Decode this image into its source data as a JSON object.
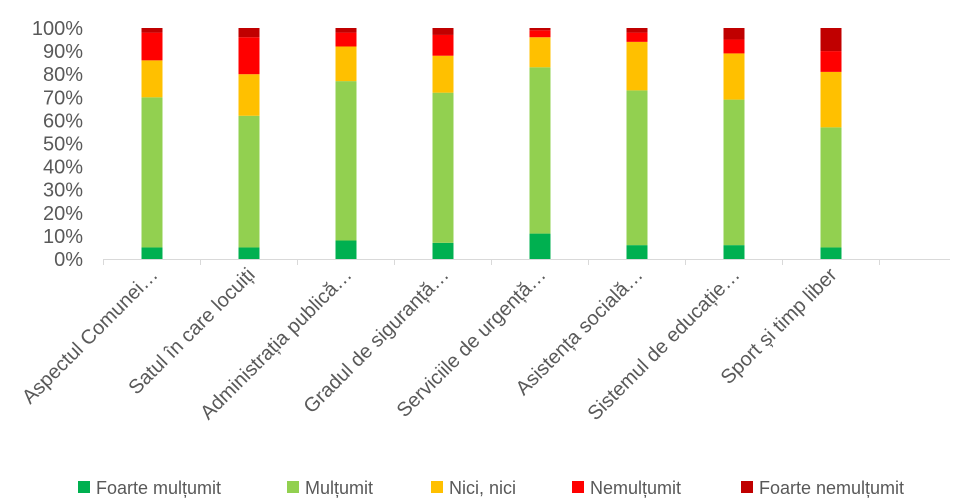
{
  "chart_data": {
    "type": "bar",
    "stacking": "percent",
    "title": "",
    "xlabel": "",
    "ylabel": "",
    "categories": [
      "Aspectul Comunei…",
      "Satul în care locuiți",
      "Administrația publică…",
      "Gradul de siguranță…",
      "Serviciile de urgență…",
      "Asistența socială…",
      "Sistemul de educație…",
      "Sport și timp liber"
    ],
    "series": [
      {
        "name": "Foarte mulțumit",
        "color": "#00b050",
        "values": [
          5,
          5,
          8,
          7,
          11,
          6,
          6,
          5
        ]
      },
      {
        "name": "Mulțumit",
        "color": "#92d050",
        "values": [
          65,
          57,
          69,
          65,
          72,
          67,
          63,
          52
        ]
      },
      {
        "name": "Nici, nici",
        "color": "#ffc000",
        "values": [
          16,
          18,
          15,
          16,
          13,
          21,
          20,
          24
        ]
      },
      {
        "name": "Nemulțumit",
        "color": "#ff0000",
        "values": [
          12,
          16,
          6,
          9,
          3,
          4,
          6,
          9
        ]
      },
      {
        "name": "Foarte nemulțumit",
        "color": "#c00000",
        "values": [
          2,
          4,
          2,
          3,
          1,
          2,
          5,
          10
        ]
      }
    ],
    "ylim": [
      0,
      100
    ],
    "yticks": [
      0,
      10,
      20,
      30,
      40,
      50,
      60,
      70,
      80,
      90,
      100
    ],
    "ytick_labels": [
      "0%",
      "10%",
      "20%",
      "30%",
      "40%",
      "50%",
      "60%",
      "70%",
      "80%",
      "90%",
      "100%"
    ],
    "grid": false,
    "legend": "bottom",
    "axis_color": "#d9d9d9",
    "text_color": "#595959"
  }
}
